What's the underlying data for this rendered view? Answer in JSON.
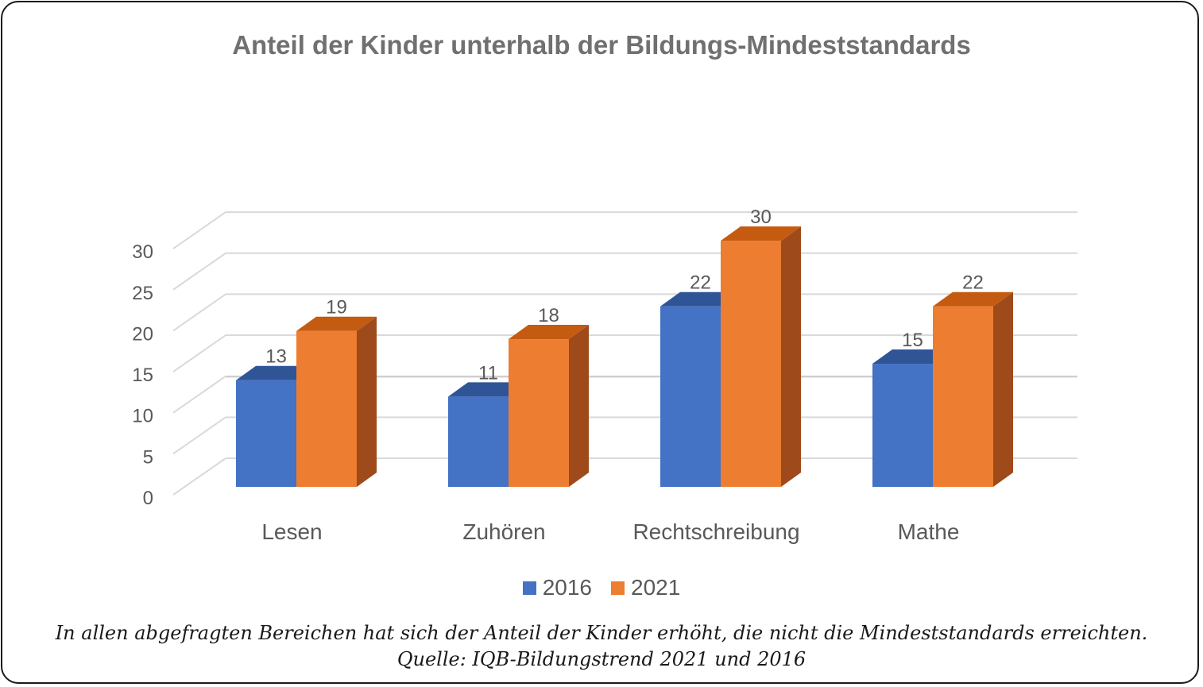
{
  "chart_data": {
    "type": "bar",
    "title": "Anteil der Kinder unterhalb der Bildungs-Mindeststandards",
    "categories": [
      "Lesen",
      "Zuhören",
      "Rechtschreibung",
      "Mathe"
    ],
    "series": [
      {
        "name": "2016",
        "values": [
          13,
          11,
          22,
          15
        ],
        "color": "#4472C4",
        "top_color": "#2F5597",
        "side_color": "#2F5597"
      },
      {
        "name": "2021",
        "values": [
          19,
          18,
          30,
          22
        ],
        "color": "#ED7D31",
        "top_color": "#C55A11",
        "side_color": "#9E4A1B"
      }
    ],
    "yticks": [
      "0",
      "5",
      "10",
      "15",
      "20",
      "25",
      "30"
    ],
    "ylim": [
      0,
      33
    ],
    "grid": true,
    "legend": "bottom",
    "style": "3d-clustered-column"
  },
  "caption": {
    "line1": "In allen abgefragten Bereichen hat sich der Anteil der Kinder erhöht, die nicht die Mindeststandards erreichten.",
    "line2": "Quelle: IQB-Bildungstrend 2021 und 2016"
  }
}
